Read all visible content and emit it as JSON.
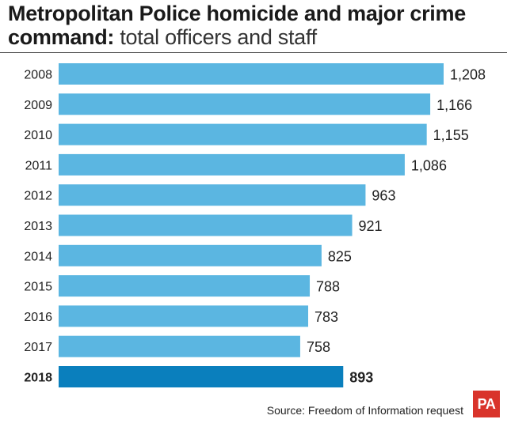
{
  "title": {
    "bold": "Metropolitan Police homicide and major crime command:",
    "light": "total officers and staff"
  },
  "source": "Source: Freedom of Information request",
  "logo": "PA",
  "colors": {
    "bar": "#5bb6e1",
    "bar_highlight": "#0a7fbd",
    "logo_bg": "#d9342b"
  },
  "chart_data": {
    "type": "bar",
    "orientation": "horizontal",
    "title": "Metropolitan Police homicide and major crime command: total officers and staff",
    "categories": [
      "2008",
      "2009",
      "2010",
      "2011",
      "2012",
      "2013",
      "2014",
      "2015",
      "2016",
      "2017",
      "2018"
    ],
    "values": [
      1208,
      1166,
      1155,
      1086,
      963,
      921,
      825,
      788,
      783,
      758,
      893
    ],
    "value_labels": [
      "1,208",
      "1,166",
      "1,155",
      "1,086",
      "963",
      "921",
      "825",
      "788",
      "783",
      "758",
      "893"
    ],
    "highlight": "2018",
    "xlim": [
      0,
      1208
    ],
    "grid": false
  }
}
